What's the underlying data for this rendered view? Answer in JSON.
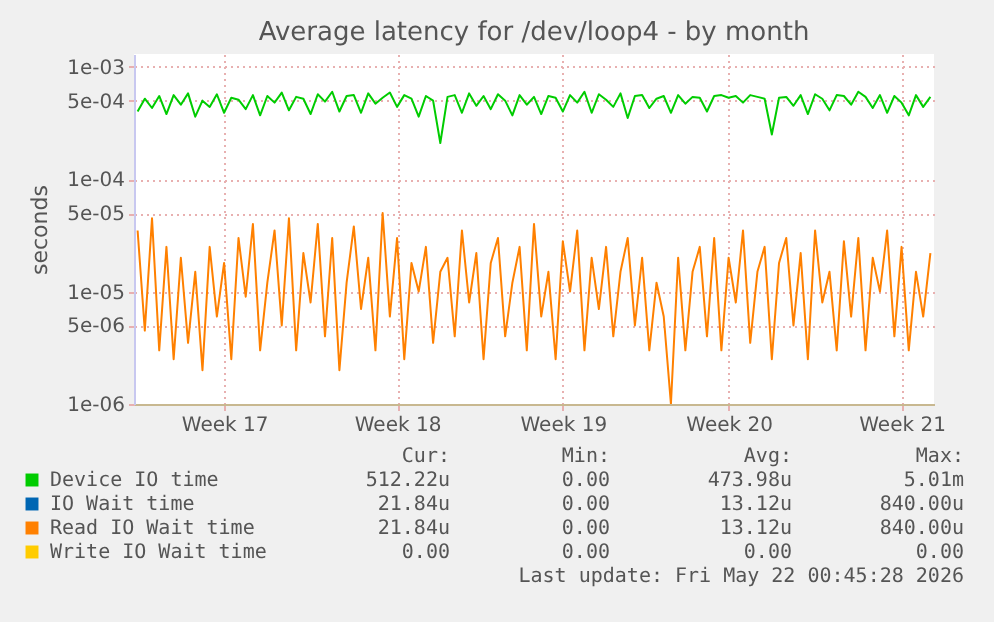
{
  "chart_data": {
    "type": "line",
    "title": "Average latency for /dev/loop4 - by month",
    "ylabel": "seconds",
    "log": true,
    "grid": true,
    "legend": "bottom",
    "marker": "none",
    "line_style": "solid",
    "categories": [
      null,
      null,
      null,
      null,
      null,
      null,
      null,
      null,
      null,
      null,
      null,
      null,
      "Week 17",
      null,
      null,
      null,
      null,
      null,
      null,
      null,
      null,
      null,
      null,
      null,
      null,
      null,
      null,
      null,
      null,
      null,
      null,
      null,
      null,
      null,
      null,
      null,
      "Week 18",
      null,
      null,
      null,
      null,
      null,
      null,
      null,
      null,
      null,
      null,
      null,
      null,
      null,
      null,
      null,
      null,
      null,
      null,
      null,
      null,
      null,
      null,
      "Week 19",
      null,
      null,
      null,
      null,
      null,
      null,
      null,
      null,
      null,
      null,
      null,
      null,
      null,
      null,
      null,
      null,
      null,
      null,
      null,
      null,
      null,
      null,
      "Week 20",
      null,
      null,
      null,
      null,
      null,
      null,
      null,
      null,
      null,
      null,
      null,
      null,
      null,
      null,
      null,
      null,
      null,
      null,
      null,
      null,
      null,
      null,
      null,
      "Week 21",
      null,
      null,
      null,
      null
    ],
    "ylim": [
      1e-06,
      0.0013
    ],
    "yticks": [
      {
        "value": 1e-06,
        "label": "1e-06"
      },
      {
        "value": 5e-06,
        "label": "5e-06"
      },
      {
        "value": 1e-05,
        "label": "1e-05"
      },
      {
        "value": 5e-05,
        "label": "5e-05"
      },
      {
        "value": 0.0001,
        "label": "1e-04"
      },
      {
        "value": 0.0005,
        "label": "5e-04"
      },
      {
        "value": 0.001,
        "label": "1e-03"
      }
    ],
    "series": [
      {
        "name": "Device IO time",
        "color": "#00cc00",
        "values": [
          0.0004,
          0.00052,
          0.00043,
          0.00055,
          0.00038,
          0.00056,
          0.00046,
          0.00058,
          0.00036,
          0.0005,
          0.00044,
          0.00057,
          0.00039,
          0.00053,
          0.00051,
          0.00042,
          0.00056,
          0.00037,
          0.00055,
          0.00048,
          0.00059,
          0.00041,
          0.00054,
          0.00052,
          0.00038,
          0.00057,
          0.00049,
          0.0006,
          0.0004,
          0.00055,
          0.00056,
          0.00039,
          0.00058,
          0.00047,
          0.00053,
          0.00059,
          0.00044,
          0.00056,
          0.00052,
          0.00036,
          0.00055,
          0.0005,
          0.00021,
          0.00054,
          0.00056,
          0.00039,
          0.00058,
          0.00045,
          0.00055,
          0.00042,
          0.00057,
          0.0005,
          0.00037,
          0.00056,
          0.00046,
          0.00054,
          0.00038,
          0.00055,
          0.00053,
          0.0004,
          0.00056,
          0.00048,
          0.0006,
          0.00039,
          0.00057,
          0.00051,
          0.00044,
          0.00058,
          0.00035,
          0.00055,
          0.00056,
          0.00043,
          0.00052,
          0.00055,
          0.00039,
          0.00056,
          0.00047,
          0.00054,
          0.00053,
          0.0004,
          0.00055,
          0.00056,
          0.00053,
          0.00055,
          0.00048,
          0.00056,
          0.00054,
          0.00052,
          0.00025,
          0.00053,
          0.00054,
          0.00045,
          0.00056,
          0.00038,
          0.00057,
          0.00052,
          0.00041,
          0.00056,
          0.00055,
          0.00046,
          0.0006,
          0.00054,
          0.00043,
          0.00056,
          0.00039,
          0.00055,
          0.00048,
          0.00037,
          0.00056,
          0.00044,
          0.00054
        ]
      },
      {
        "name": "IO Wait time",
        "color": "#0066b3",
        "values": [
          null,
          null,
          null,
          null,
          null,
          null,
          null,
          null,
          null,
          null,
          null,
          null,
          null,
          null,
          null,
          null,
          null,
          null,
          null,
          null,
          null,
          null,
          null,
          null,
          null,
          null,
          null,
          null,
          null,
          null,
          null,
          null,
          null,
          null,
          null,
          null,
          null,
          null,
          null,
          null,
          null,
          null,
          null,
          null,
          null,
          null,
          null,
          null,
          null,
          null,
          null,
          null,
          null,
          null,
          null,
          null,
          null,
          null,
          null,
          null,
          null,
          null,
          null,
          null,
          null,
          null,
          null,
          null,
          null,
          null,
          null,
          null,
          null,
          null,
          null,
          null,
          null,
          null,
          null,
          null,
          null,
          null,
          null,
          null,
          null,
          null,
          null,
          null,
          null,
          null,
          null,
          null,
          null,
          null,
          null,
          null,
          null,
          null,
          null,
          null,
          null,
          null,
          null,
          null,
          null,
          null,
          null,
          null,
          null,
          null,
          null
        ]
      },
      {
        "name": "Read IO Wait time",
        "color": "#ff8000",
        "values": [
          3.5e-05,
          4.5e-06,
          4.5e-05,
          3e-06,
          2.5e-05,
          2.5e-06,
          2e-05,
          3.5e-06,
          1.5e-05,
          2e-06,
          2.5e-05,
          6e-06,
          1.8e-05,
          2.5e-06,
          3e-05,
          9e-06,
          4e-05,
          3e-06,
          1.2e-05,
          3.5e-05,
          5e-06,
          4.5e-05,
          3e-06,
          2.2e-05,
          8e-06,
          4e-05,
          4e-06,
          3e-05,
          2e-06,
          1.2e-05,
          3.8e-05,
          7e-06,
          2e-05,
          3e-06,
          5e-05,
          6e-06,
          3e-05,
          2.5e-06,
          1.8e-05,
          1e-05,
          2.5e-05,
          3.5e-06,
          1.5e-05,
          2e-05,
          4e-06,
          3.5e-05,
          8e-06,
          2.2e-05,
          2.5e-06,
          1.8e-05,
          3e-05,
          4e-06,
          1.2e-05,
          2.5e-05,
          3e-06,
          4e-05,
          6e-06,
          1.5e-05,
          2.5e-06,
          2.8e-05,
          1e-05,
          3.5e-05,
          3e-06,
          2e-05,
          7e-06,
          2.5e-05,
          4e-06,
          1.5e-05,
          3e-05,
          5e-06,
          2e-05,
          3e-06,
          1.2e-05,
          6e-06,
          1e-06,
          2e-05,
          3e-06,
          1.5e-05,
          2.5e-05,
          4e-06,
          3e-05,
          3e-06,
          2e-05,
          8e-06,
          3.5e-05,
          3.5e-06,
          1.5e-05,
          2.5e-05,
          2.5e-06,
          1.8e-05,
          3e-05,
          5e-06,
          2.2e-05,
          2.5e-06,
          3.5e-05,
          8e-06,
          1.5e-05,
          3e-06,
          2.8e-05,
          6e-06,
          3e-05,
          3e-06,
          2e-05,
          1e-05,
          3.5e-05,
          4e-06,
          2.5e-05,
          3e-06,
          1.5e-05,
          6e-06,
          2.2e-05
        ]
      },
      {
        "name": "Write IO Wait time",
        "color": "#ffcc00",
        "values": [
          null,
          null,
          null,
          null,
          null,
          null,
          null,
          null,
          null,
          null,
          null,
          null,
          null,
          null,
          null,
          null,
          null,
          null,
          null,
          null,
          null,
          null,
          null,
          null,
          null,
          null,
          null,
          null,
          null,
          null,
          null,
          null,
          null,
          null,
          null,
          null,
          null,
          null,
          null,
          null,
          null,
          null,
          null,
          null,
          null,
          null,
          null,
          null,
          null,
          null,
          null,
          null,
          null,
          null,
          null,
          null,
          null,
          null,
          null,
          null,
          null,
          null,
          null,
          null,
          null,
          null,
          null,
          null,
          null,
          null,
          null,
          null,
          null,
          null,
          null,
          null,
          null,
          null,
          null,
          null,
          null,
          null,
          null,
          null,
          null,
          null,
          null,
          null,
          null,
          null,
          null,
          null,
          null,
          null,
          null,
          null,
          null,
          null,
          null,
          null,
          null,
          null,
          null,
          null,
          null,
          null,
          null,
          null,
          null,
          null,
          null
        ]
      }
    ],
    "annotations": [
      "Cur:",
      "Min:",
      "Avg:",
      "Max:",
      "512.22u",
      "0.00",
      "473.98u",
      "5.01m",
      "21.84u",
      "0.00",
      "13.12u",
      "840.00u",
      "21.84u",
      "0.00",
      "13.12u",
      "840.00u",
      "0.00",
      "0.00",
      "0.00",
      "0.00",
      "Last update: Fri May 22 00:45:28 2026"
    ]
  }
}
